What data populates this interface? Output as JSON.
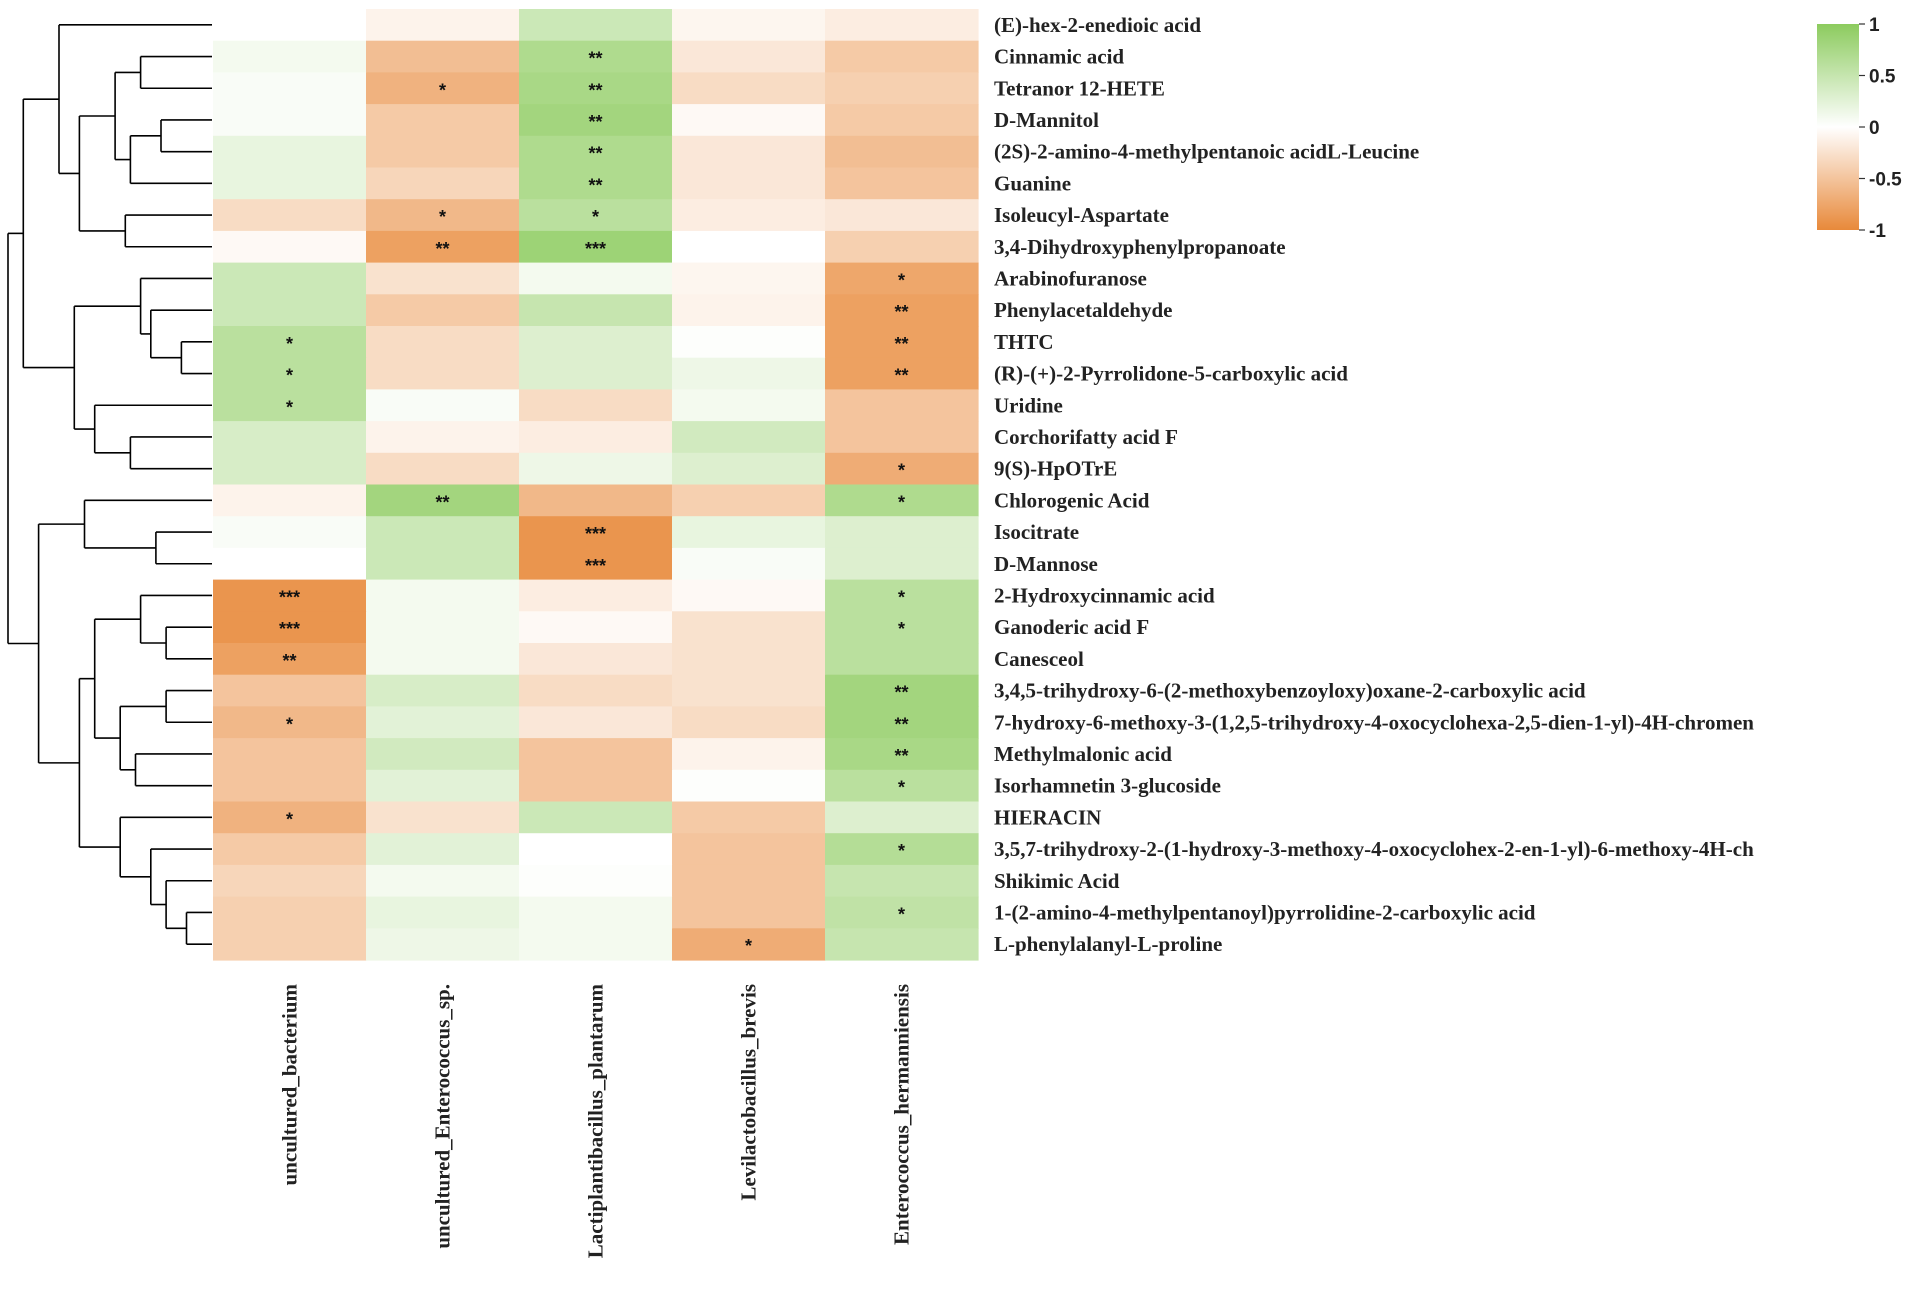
{
  "chart_data": {
    "type": "heatmap",
    "title": "",
    "rows": [
      "(E)-hex-2-enedioic acid",
      "Cinnamic acid",
      "Tetranor 12-HETE",
      "D-Mannitol",
      "(2S)-2-amino-4-methylpentanoic acidL-Leucine",
      "Guanine",
      "Isoleucyl-Aspartate",
      "3,4-Dihydroxyphenylpropanoate",
      "Arabinofuranose",
      "Phenylacetaldehyde",
      "THTC",
      "(R)-(+)-2-Pyrrolidone-5-carboxylic acid",
      "Uridine",
      "Corchorifatty acid F",
      "9(S)-HpOTrE",
      "Chlorogenic Acid",
      "Isocitrate",
      "D-Mannose",
      "2-Hydroxycinnamic acid",
      "Ganoderic acid F",
      "Canesceol",
      "3,4,5-trihydroxy-6-(2-methoxybenzoyloxy)oxane-2-carboxylic acid",
      "7-hydroxy-6-methoxy-3-(1,2,5-trihydroxy-4-oxocyclohexa-2,5-dien-1-yl)-4H-chromen",
      "Methylmalonic acid",
      "Isorhamnetin 3-glucoside",
      "HIERACIN",
      "3,5,7-trihydroxy-2-(1-hydroxy-3-methoxy-4-oxocyclohex-2-en-1-yl)-6-methoxy-4H-ch",
      "Shikimic Acid",
      "1-(2-amino-4-methylpentanoyl)pyrrolidine-2-carboxylic acid",
      "L-phenylalanyl-L-proline"
    ],
    "columns": [
      "uncultured_bacterium",
      "uncultured_Enterococcus_sp.",
      "Lactiplantibacillus_plantarum",
      "Levilactobacillus_brevis",
      "Enterococcus_hermanniensis"
    ],
    "values": [
      [
        0.0,
        -0.1,
        0.45,
        -0.08,
        -0.15
      ],
      [
        0.1,
        -0.55,
        0.7,
        -0.2,
        -0.45
      ],
      [
        0.05,
        -0.65,
        0.75,
        -0.3,
        -0.4
      ],
      [
        0.05,
        -0.45,
        0.8,
        -0.05,
        -0.45
      ],
      [
        0.2,
        -0.45,
        0.7,
        -0.2,
        -0.55
      ],
      [
        0.2,
        -0.35,
        0.7,
        -0.2,
        -0.5
      ],
      [
        -0.3,
        -0.6,
        0.6,
        -0.15,
        -0.2
      ],
      [
        -0.05,
        -0.8,
        0.85,
        0.0,
        -0.4
      ],
      [
        0.45,
        -0.25,
        0.1,
        -0.08,
        -0.75
      ],
      [
        0.45,
        -0.45,
        0.5,
        -0.1,
        -0.8
      ],
      [
        0.6,
        -0.3,
        0.3,
        0.02,
        -0.8
      ],
      [
        0.6,
        -0.3,
        0.3,
        0.15,
        -0.8
      ],
      [
        0.6,
        0.05,
        -0.3,
        0.1,
        -0.5
      ],
      [
        0.35,
        -0.1,
        -0.15,
        0.4,
        -0.5
      ],
      [
        0.35,
        -0.3,
        0.15,
        0.3,
        -0.7
      ],
      [
        -0.1,
        0.8,
        -0.6,
        -0.4,
        0.7
      ],
      [
        0.05,
        0.45,
        -0.9,
        0.2,
        0.3
      ],
      [
        0.0,
        0.45,
        -0.9,
        0.05,
        0.3
      ],
      [
        -0.9,
        0.1,
        -0.15,
        -0.05,
        0.6
      ],
      [
        -0.9,
        0.1,
        -0.05,
        -0.25,
        0.6
      ],
      [
        -0.8,
        0.1,
        -0.2,
        -0.25,
        0.6
      ],
      [
        -0.5,
        0.35,
        -0.3,
        -0.25,
        0.8
      ],
      [
        -0.6,
        0.25,
        -0.2,
        -0.3,
        0.8
      ],
      [
        -0.5,
        0.4,
        -0.5,
        -0.1,
        0.75
      ],
      [
        -0.5,
        0.25,
        -0.5,
        0.02,
        0.6
      ],
      [
        -0.65,
        -0.25,
        0.45,
        -0.45,
        0.3
      ],
      [
        -0.45,
        0.25,
        0.0,
        -0.5,
        0.65
      ],
      [
        -0.35,
        0.1,
        0.02,
        -0.5,
        0.5
      ],
      [
        -0.4,
        0.2,
        0.1,
        -0.5,
        0.55
      ],
      [
        -0.4,
        0.15,
        0.1,
        -0.7,
        0.5
      ]
    ],
    "significance": [
      [
        "",
        "",
        "",
        "",
        ""
      ],
      [
        "",
        "",
        "**",
        "",
        ""
      ],
      [
        "",
        "*",
        "**",
        "",
        ""
      ],
      [
        "",
        "",
        "**",
        "",
        ""
      ],
      [
        "",
        "",
        "**",
        "",
        ""
      ],
      [
        "",
        "",
        "**",
        "",
        ""
      ],
      [
        "",
        "*",
        "*",
        "",
        ""
      ],
      [
        "",
        "**",
        "***",
        "",
        ""
      ],
      [
        "",
        "",
        "",
        "",
        "*"
      ],
      [
        "",
        "",
        "",
        "",
        "**"
      ],
      [
        "*",
        "",
        "",
        "",
        "**"
      ],
      [
        "*",
        "",
        "",
        "",
        "**"
      ],
      [
        "*",
        "",
        "",
        "",
        ""
      ],
      [
        "",
        "",
        "",
        "",
        ""
      ],
      [
        "",
        "",
        "",
        "",
        "*"
      ],
      [
        "",
        "**",
        "",
        "",
        "*"
      ],
      [
        "",
        "",
        "***",
        "",
        ""
      ],
      [
        "",
        "",
        "***",
        "",
        ""
      ],
      [
        "***",
        "",
        "",
        "",
        "*"
      ],
      [
        "***",
        "",
        "",
        "",
        "*"
      ],
      [
        "**",
        "",
        "",
        "",
        ""
      ],
      [
        "",
        "",
        "",
        "",
        "**"
      ],
      [
        "*",
        "",
        "",
        "",
        "**"
      ],
      [
        "",
        "",
        "",
        "",
        "**"
      ],
      [
        "",
        "",
        "",
        "",
        "*"
      ],
      [
        "*",
        "",
        "",
        "",
        ""
      ],
      [
        "",
        "",
        "",
        "",
        "*"
      ],
      [
        "",
        "",
        "",
        "",
        ""
      ],
      [
        "",
        "",
        "",
        "",
        "*"
      ],
      [
        "",
        "",
        "",
        "*",
        ""
      ]
    ],
    "colorbar": {
      "range": [
        -1,
        1
      ],
      "ticks": [
        1,
        0.5,
        0,
        -0.5,
        -1
      ],
      "tick_labels": [
        "1",
        "0.5",
        "0",
        "-0.5",
        "-1"
      ],
      "low_color": "#E8893A",
      "mid_color": "#FFFFFF",
      "high_color": "#8CCB5E"
    },
    "dendrogram": {
      "leaf_order": [
        0,
        1,
        2,
        3,
        4,
        5,
        6,
        7,
        8,
        9,
        10,
        11,
        12,
        13,
        14,
        15,
        16,
        17,
        18,
        19,
        20,
        21,
        22,
        23,
        24,
        25,
        26,
        27,
        28,
        29
      ],
      "merges": [
        [
          3,
          4,
          1
        ],
        [
          1,
          2,
          1.4
        ],
        [
          5,
          "m0",
          1.6
        ],
        [
          "m1",
          "m2",
          1.9
        ],
        [
          6,
          7,
          1.7
        ],
        [
          "m3",
          "m4",
          2.6
        ],
        [
          0,
          "m5",
          3.0
        ],
        [
          10,
          11,
          0.6
        ],
        [
          9,
          "m7",
          1.2
        ],
        [
          8,
          "m8",
          1.4
        ],
        [
          13,
          14,
          1.6
        ],
        [
          12,
          "m10",
          2.3
        ],
        [
          "m9",
          "m11",
          2.7
        ],
        [
          "m6",
          "m12",
          3.7
        ],
        [
          16,
          17,
          1.1
        ],
        [
          15,
          "m14",
          2.5
        ],
        [
          19,
          20,
          0.9
        ],
        [
          18,
          "m16",
          1.4
        ],
        [
          21,
          22,
          0.9
        ],
        [
          23,
          24,
          1.5
        ],
        [
          "m18",
          "m19",
          1.8
        ],
        [
          "m17",
          "m20",
          2.3
        ],
        [
          28,
          29,
          0.5
        ],
        [
          27,
          "m22",
          0.9
        ],
        [
          26,
          "m23",
          1.2
        ],
        [
          25,
          "m24",
          1.8
        ],
        [
          "m21",
          "m25",
          2.6
        ],
        [
          "m15",
          "m26",
          3.4
        ],
        [
          "m13",
          "m27",
          4.0
        ]
      ]
    }
  }
}
